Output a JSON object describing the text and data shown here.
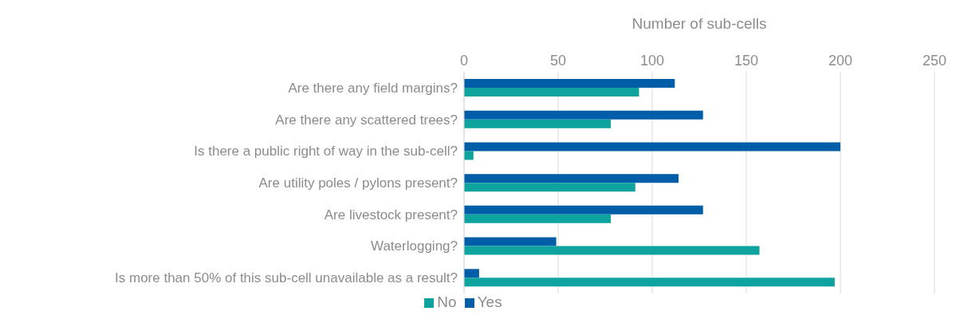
{
  "chart_data": {
    "type": "bar",
    "orientation": "horizontal",
    "xlabel": "Number of sub-cells",
    "categories": [
      "Are there any field margins?",
      "Are there any scattered trees?",
      "Is there a public right of way in the sub-cell?",
      "Are utility poles / pylons present?",
      "Are livestock present?",
      "Waterlogging?",
      "Is more than 50% of this sub-cell unavailable as a result?"
    ],
    "series": [
      {
        "name": "Yes",
        "color": "#005ea8",
        "values": [
          112,
          127,
          200,
          114,
          127,
          49,
          8
        ]
      },
      {
        "name": "No",
        "color": "#0fa39f",
        "values": [
          93,
          78,
          5,
          91,
          78,
          157,
          197
        ]
      }
    ],
    "xlim": [
      0,
      250
    ],
    "xticks": [
      0,
      50,
      100,
      150,
      200,
      250
    ],
    "grid": "x",
    "legend": "bottom"
  }
}
